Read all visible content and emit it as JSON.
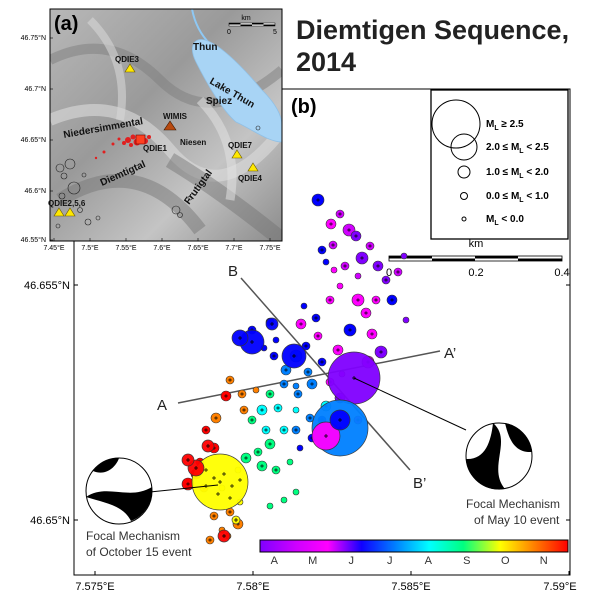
{
  "title_line1": "Diemtigen Sequence,",
  "title_line2": "2014",
  "panel_a": {
    "label": "(a)",
    "scale_unit": "km",
    "scale_ticks": [
      "0",
      "5"
    ],
    "y_ticks": [
      "46.75°N",
      "46.7°N",
      "46.65°N",
      "46.6°N",
      "46.55°N"
    ],
    "x_ticks": [
      "7.45°E",
      "7.5°E",
      "7.55°E",
      "7.6°E",
      "7.65°E",
      "7.7°E",
      "7.75°E"
    ],
    "places": [
      "Thun",
      "Lake Thun",
      "Spiez",
      "Niedersimmental",
      "Niesen",
      "Diemtigtal",
      "Frutigtal"
    ],
    "stations": [
      "QDIE3",
      "WIMIS",
      "QDIE1",
      "QDIE7",
      "QDIE4",
      "QDIE2,5,6"
    ]
  },
  "panel_b": {
    "label": "(b)",
    "y_ticks": [
      "46.655°N",
      "46.65°N"
    ],
    "x_ticks": [
      "7.575°E",
      "7.58°E",
      "7.585°E",
      "7.59°E"
    ],
    "scale_unit": "km",
    "scale_ticks": [
      "0",
      "0.2",
      "0.4"
    ],
    "profiles": [
      "A",
      "A’",
      "B",
      "B’"
    ],
    "legend": [
      {
        "prefix": "M",
        "sub": "L",
        "rest": " ≥ 2.5"
      },
      {
        "prefix": "2.0 ≤ M",
        "sub": "L",
        "rest": " < 2.5"
      },
      {
        "prefix": "1.0 ≤ M",
        "sub": "L",
        "rest": " < 2.0"
      },
      {
        "prefix": "0.0 ≤ M",
        "sub": "L",
        "rest": " < 1.0"
      },
      {
        "prefix": "M",
        "sub": "L",
        "rest": " < 0.0"
      }
    ],
    "focal_right": [
      "Focal Mechanism",
      "of May 10 event"
    ],
    "focal_left": [
      "Focal Mechanism",
      "of October 15 event"
    ],
    "colorbar_months": [
      "A",
      "M",
      "J",
      "J",
      "A",
      "S",
      "O",
      "N"
    ],
    "colorbar_colors": [
      "#8000ff",
      "#d000ff",
      "#ff00ff",
      "#0000ff",
      "#0080ff",
      "#00ffff",
      "#00ff80",
      "#ffff00",
      "#ff8000",
      "#ff0000"
    ]
  }
}
